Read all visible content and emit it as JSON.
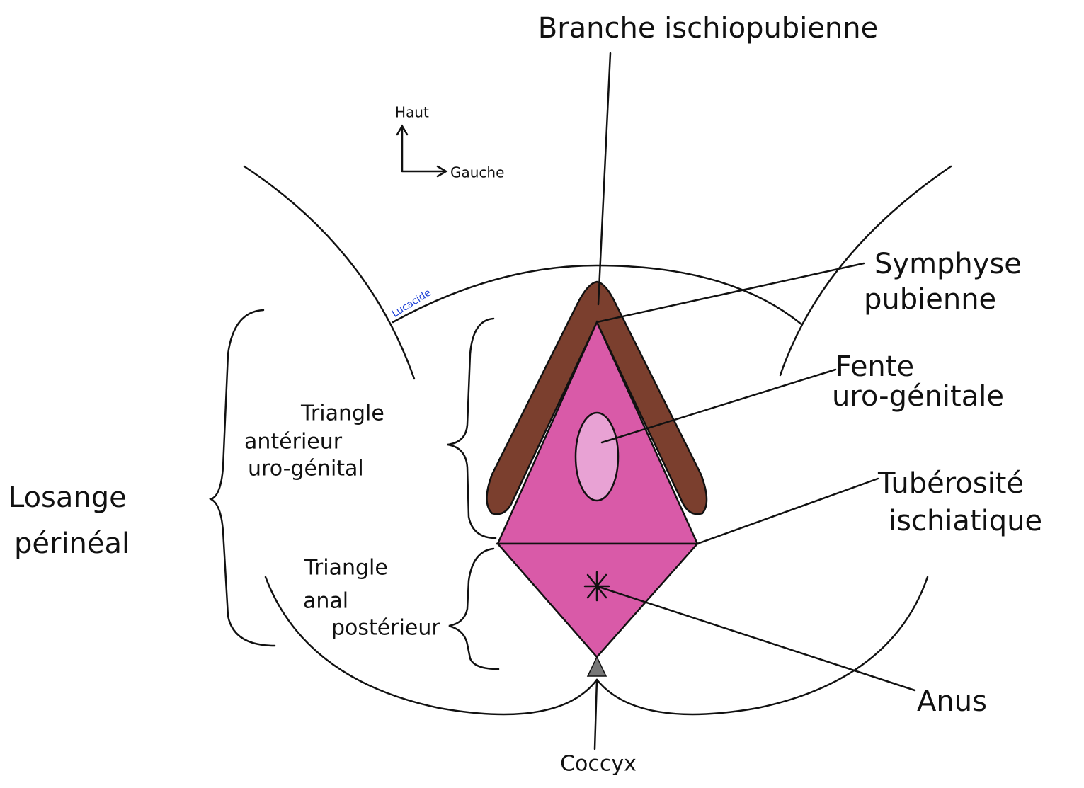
{
  "title": {
    "lines": [
      "Branche ischiopubienne"
    ]
  },
  "orientation": {
    "up": "Haut",
    "left": "Gauche"
  },
  "signature": "Lucacide",
  "labels": [
    {
      "lines": [
        "Symphyse",
        "pubienne"
      ]
    },
    {
      "lines": [
        "Fente",
        "uro-génitale"
      ]
    },
    {
      "lines": [
        "Tubérosité",
        "ischiatique"
      ]
    },
    {
      "lines": [
        "Anus"
      ]
    },
    {
      "lines": [
        "Coccyx"
      ]
    },
    {
      "lines": [
        "Triangle",
        "antérieur",
        "uro-génital"
      ]
    },
    {
      "lines": [
        "Triangle",
        "anal",
        "postérieur"
      ]
    },
    {
      "lines": [
        "Losange",
        "périnéal"
      ]
    }
  ]
}
